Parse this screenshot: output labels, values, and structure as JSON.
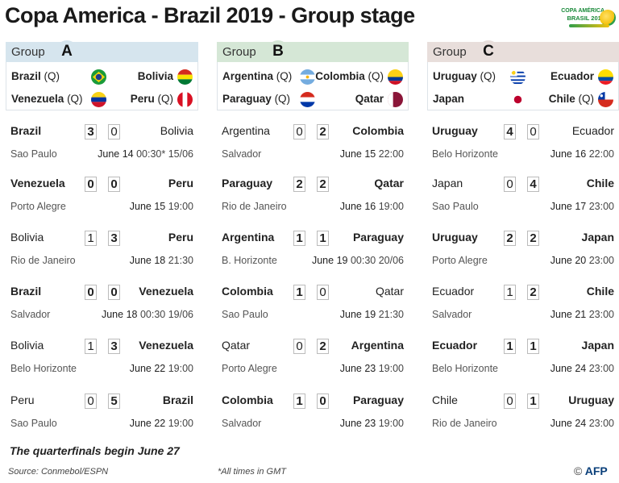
{
  "title": "Copa America - Brazil 2019 - Group stage",
  "logo": {
    "line1": "COPA AMÉRICA",
    "line2": "BRASIL 2019"
  },
  "group_word": "Group",
  "groups": [
    {
      "letter": "A",
      "teams": [
        {
          "name": "Brazil",
          "q": "(Q)",
          "flag": "brazil"
        },
        {
          "name": "Bolivia",
          "q": "",
          "flag": "bolivia"
        },
        {
          "name": "Venezuela",
          "q": "(Q)",
          "flag": "venezuela"
        },
        {
          "name": "Peru",
          "q": "(Q)",
          "flag": "peru"
        }
      ],
      "matches": [
        {
          "home": "Brazil",
          "hs": "3",
          "as": "0",
          "away": "Bolivia",
          "venue": "Sao Paulo",
          "date": "June 14",
          "time": "00:30* 15/06",
          "hb": true,
          "ab": false
        },
        {
          "home": "Venezuela",
          "hs": "0",
          "as": "0",
          "away": "Peru",
          "venue": "Porto Alegre",
          "date": "June 15",
          "time": "19:00",
          "hb": true,
          "ab": true
        },
        {
          "home": "Bolivia",
          "hs": "1",
          "as": "3",
          "away": "Peru",
          "venue": "Rio de Janeiro",
          "date": "June 18",
          "time": "21:30",
          "hb": false,
          "ab": true
        },
        {
          "home": "Brazil",
          "hs": "0",
          "as": "0",
          "away": "Venezuela",
          "venue": "Salvador",
          "date": "June 18",
          "time": "00:30 19/06",
          "hb": true,
          "ab": true
        },
        {
          "home": "Bolivia",
          "hs": "1",
          "as": "3",
          "away": "Venezuela",
          "venue": "Belo Horizonte",
          "date": "June 22",
          "time": "19:00",
          "hb": false,
          "ab": true
        },
        {
          "home": "Peru",
          "hs": "0",
          "as": "5",
          "away": "Brazil",
          "venue": "Sao Paulo",
          "date": "June 22",
          "time": "19:00",
          "hb": false,
          "ab": true
        }
      ]
    },
    {
      "letter": "B",
      "teams": [
        {
          "name": "Argentina",
          "q": "(Q)",
          "flag": "argentina"
        },
        {
          "name": "Colombia",
          "q": "(Q)",
          "flag": "colombia"
        },
        {
          "name": "Paraguay",
          "q": "(Q)",
          "flag": "paraguay"
        },
        {
          "name": "Qatar",
          "q": "",
          "flag": "qatar"
        }
      ],
      "matches": [
        {
          "home": "Argentina",
          "hs": "0",
          "as": "2",
          "away": "Colombia",
          "venue": "Salvador",
          "date": "June 15",
          "time": "22:00",
          "hb": false,
          "ab": true
        },
        {
          "home": "Paraguay",
          "hs": "2",
          "as": "2",
          "away": "Qatar",
          "venue": "Rio de Janeiro",
          "date": "June 16",
          "time": "19:00",
          "hb": true,
          "ab": true
        },
        {
          "home": "Argentina",
          "hs": "1",
          "as": "1",
          "away": "Paraguay",
          "venue": "B. Horizonte",
          "date": "June 19",
          "time": "00:30 20/06",
          "hb": true,
          "ab": true
        },
        {
          "home": "Colombia",
          "hs": "1",
          "as": "0",
          "away": "Qatar",
          "venue": "Sao Paulo",
          "date": "June 19",
          "time": "21:30",
          "hb": true,
          "ab": false
        },
        {
          "home": "Qatar",
          "hs": "0",
          "as": "2",
          "away": "Argentina",
          "venue": "Porto Alegre",
          "date": "June 23",
          "time": "19:00",
          "hb": false,
          "ab": true
        },
        {
          "home": "Colombia",
          "hs": "1",
          "as": "0",
          "away": "Paraguay",
          "venue": "Salvador",
          "date": "June 23",
          "time": "19:00",
          "hb": true,
          "ab": true
        }
      ]
    },
    {
      "letter": "C",
      "teams": [
        {
          "name": "Uruguay",
          "q": "(Q)",
          "flag": "uruguay"
        },
        {
          "name": "Ecuador",
          "q": "",
          "flag": "ecuador"
        },
        {
          "name": "Japan",
          "q": "",
          "flag": "japan"
        },
        {
          "name": "Chile",
          "q": "(Q)",
          "flag": "chile"
        }
      ],
      "matches": [
        {
          "home": "Uruguay",
          "hs": "4",
          "as": "0",
          "away": "Ecuador",
          "venue": "Belo Horizonte",
          "date": "June 16",
          "time": "22:00",
          "hb": true,
          "ab": false
        },
        {
          "home": "Japan",
          "hs": "0",
          "as": "4",
          "away": "Chile",
          "venue": "Sao Paulo",
          "date": "June 17",
          "time": "23:00",
          "hb": false,
          "ab": true
        },
        {
          "home": "Uruguay",
          "hs": "2",
          "as": "2",
          "away": "Japan",
          "venue": "Porto Alegre",
          "date": "June 20",
          "time": "23:00",
          "hb": true,
          "ab": true
        },
        {
          "home": "Ecuador",
          "hs": "1",
          "as": "2",
          "away": "Chile",
          "venue": "Salvador",
          "date": "June 21",
          "time": "23:00",
          "hb": false,
          "ab": true
        },
        {
          "home": "Ecuador",
          "hs": "1",
          "as": "1",
          "away": "Japan",
          "venue": "Belo Horizonte",
          "date": "June 24",
          "time": "23:00",
          "hb": true,
          "ab": true
        },
        {
          "home": "Chile",
          "hs": "0",
          "as": "1",
          "away": "Uruguay",
          "venue": "Rio de Janeiro",
          "date": "June 24",
          "time": "23:00",
          "hb": false,
          "ab": true
        }
      ]
    }
  ],
  "footer": {
    "quarterfinals": "The quarterfinals begin June 27",
    "source": "Source: Conmebol/ESPN",
    "gmt_note": "*All times in  GMT",
    "credit_symbol": "©",
    "credit": "AFP"
  }
}
